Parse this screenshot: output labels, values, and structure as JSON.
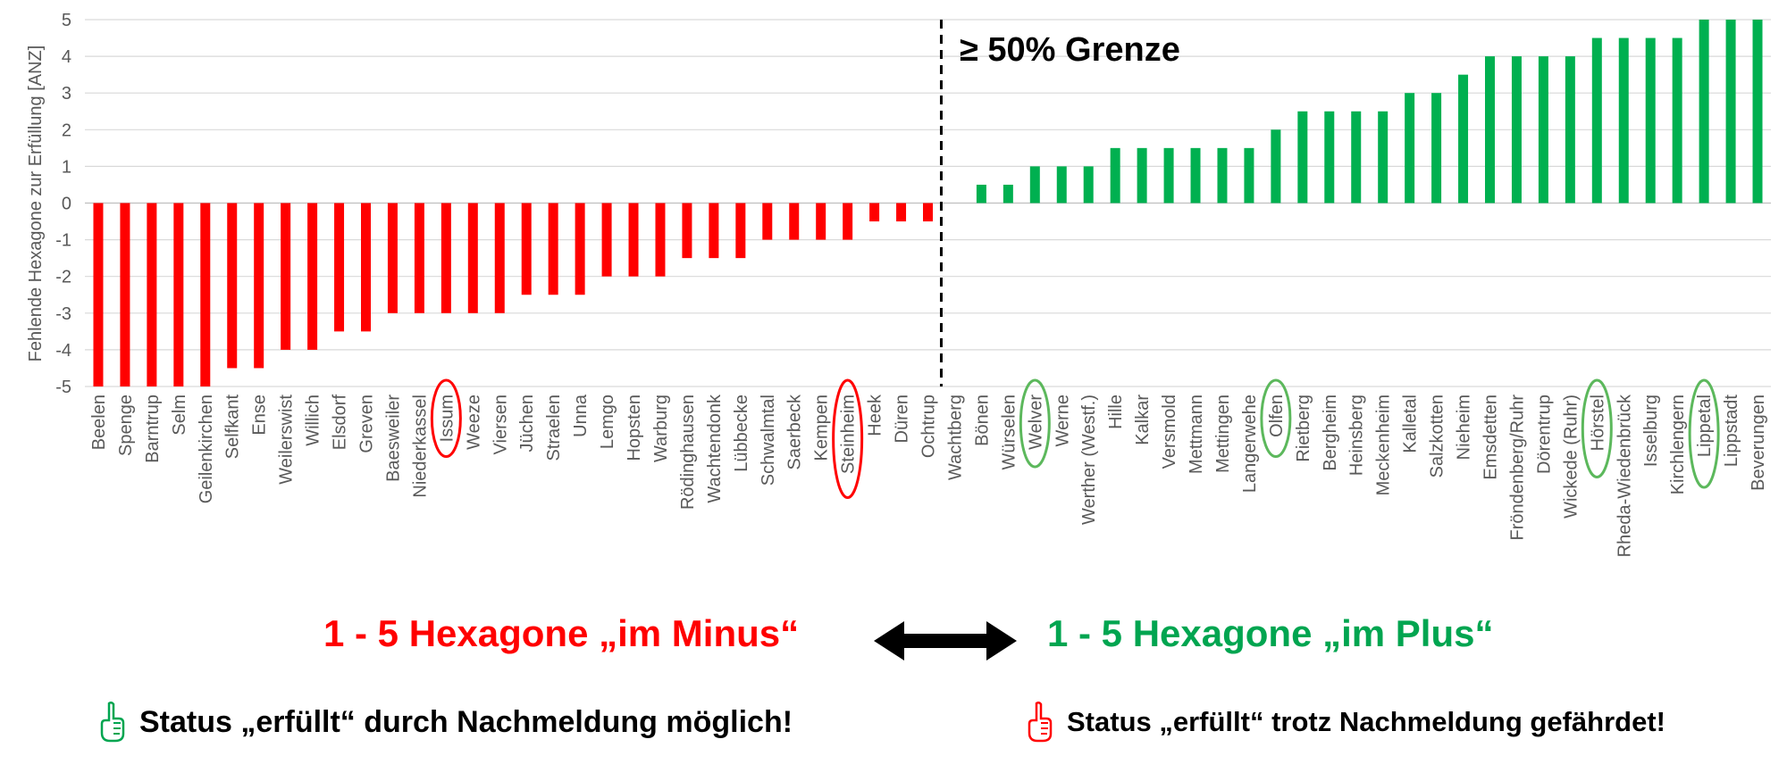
{
  "chart_data": {
    "type": "bar",
    "ylabel": "Fehlende Hexagone zur Erfüllung [ANZ]",
    "ylim": [
      -5,
      5
    ],
    "yticks": [
      -5,
      -4,
      -3,
      -2,
      -1,
      0,
      1,
      2,
      3,
      4,
      5
    ],
    "grid": true,
    "categories": [
      "Beelen",
      "Spenge",
      "Barntrup",
      "Selm",
      "Geilenkirchen",
      "Selfkant",
      "Ense",
      "Weilerswist",
      "Willich",
      "Elsdorf",
      "Greven",
      "Baesweiler",
      "Niederkassel",
      "Issum",
      "Weeze",
      "Viersen",
      "Jüchen",
      "Straelen",
      "Unna",
      "Lemgo",
      "Hopsten",
      "Warburg",
      "Rödinghausen",
      "Wachtendonk",
      "Lübbecke",
      "Schwalmtal",
      "Saerbeck",
      "Kempen",
      "Steinheim",
      "Heek",
      "Düren",
      "Ochtrup",
      "Wachtberg",
      "Bönen",
      "Würselen",
      "Welver",
      "Werne",
      "Werther (Westf.)",
      "Hille",
      "Kalkar",
      "Versmold",
      "Mettmann",
      "Mettingen",
      "Langerwehe",
      "Olfen",
      "Rietberg",
      "Bergheim",
      "Heinsberg",
      "Meckenheim",
      "Kalletal",
      "Salzkotten",
      "Nieheim",
      "Emsdetten",
      "Fröndenberg/Ruhr",
      "Dörentrup",
      "Wickede (Ruhr)",
      "Hörstel",
      "Rheda-Wiedenbrück",
      "Isselburg",
      "Kirchlengern",
      "Lippetal",
      "Lippstadt",
      "Beverungen"
    ],
    "values": [
      -5,
      -5,
      -5,
      -5,
      -5,
      -4.5,
      -4.5,
      -4,
      -4,
      -3.5,
      -3.5,
      -3,
      -3,
      -3,
      -3,
      -3,
      -2.5,
      -2.5,
      -2.5,
      -2,
      -2,
      -2,
      -1.5,
      -1.5,
      -1.5,
      -1,
      -1,
      -1,
      -1,
      -0.5,
      -0.5,
      -0.5,
      0,
      0.5,
      0.5,
      1,
      1,
      1,
      1.5,
      1.5,
      1.5,
      1.5,
      1.5,
      1.5,
      2,
      2.5,
      2.5,
      2.5,
      2.5,
      3,
      3,
      3.5,
      4,
      4,
      4,
      4,
      4.5,
      4.5,
      4.5,
      4.5,
      5,
      5,
      5
    ],
    "colors": {
      "negative": "#ff0000",
      "positive": "#00b050",
      "grid": "#d9d9d9",
      "axis": "#bfbfbf"
    },
    "highlighted_negative": [
      "Issum",
      "Steinheim"
    ],
    "highlighted_positive": [
      "Welver",
      "Olfen",
      "Hörstel",
      "Lippetal"
    ],
    "threshold_after": "Ochtrup",
    "threshold_label": "≥ 50% Grenze"
  },
  "captions": {
    "minus": "1 - 5 Hexagone „im Minus“",
    "plus": "1 - 5 Hexagone „im Plus“",
    "status_possible": "Status „erfüllt“ durch Nachmeldung möglich!",
    "status_endangered": "Status „erfüllt“ trotz Nachmeldung gefährdet!"
  },
  "icons": {
    "status_possible": "thumb-pointing-up-green-icon",
    "status_endangered": "thumb-pointing-up-red-icon",
    "arrow": "double-headed-arrow-icon"
  }
}
